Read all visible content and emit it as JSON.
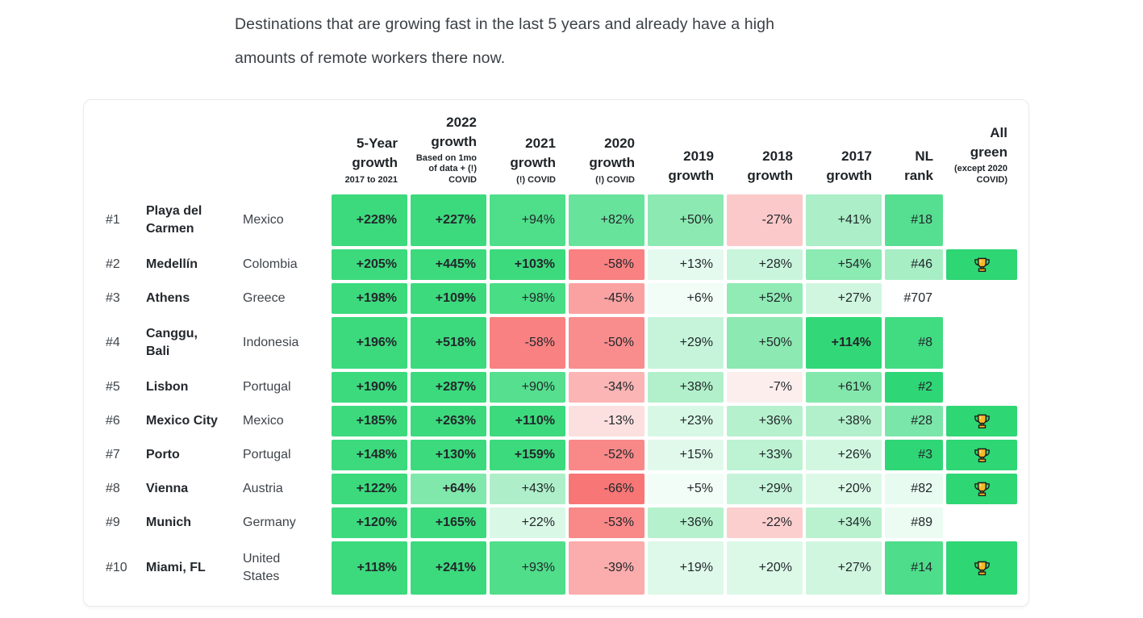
{
  "intro": {
    "text": "Destinations that are growing fast in the last 5 years and already have a high\namounts of remote workers there now."
  },
  "colors": {
    "strong_green": "#3cda7d",
    "trophy_cell_bg": "#2ed674",
    "card_border": "#e8eaec",
    "cell_text": "#22272b",
    "label_text": "#3f444a"
  },
  "icons": {
    "all_green_badge": "trophy-icon"
  },
  "table": {
    "columns": [
      {
        "title": "5-Year\ngrowth",
        "subtitle": "2017 to 2021"
      },
      {
        "title": "2022\ngrowth",
        "subtitle": "Based on 1mo\nof data + (!)\nCOVID"
      },
      {
        "title": "2021\ngrowth",
        "subtitle": "(!) COVID"
      },
      {
        "title": "2020\ngrowth",
        "subtitle": "(!) COVID"
      },
      {
        "title": "2019\ngrowth",
        "subtitle": ""
      },
      {
        "title": "2018\ngrowth",
        "subtitle": ""
      },
      {
        "title": "2017\ngrowth",
        "subtitle": ""
      },
      {
        "title": "NL\nrank",
        "subtitle": ""
      },
      {
        "title": "All\ngreen",
        "subtitle": "(except 2020\nCOVID)"
      }
    ],
    "rows": [
      {
        "rank": "#1",
        "city": "Playa del\nCarmen",
        "country": "Mexico",
        "h": 64,
        "trophy": false,
        "nl": {
          "t": "#18",
          "bg": "#56df90"
        },
        "values": [
          {
            "t": "+228%",
            "bg": "#3cda7d",
            "b": true
          },
          {
            "t": "+227%",
            "bg": "#3cda7d",
            "b": true
          },
          {
            "t": "+94%",
            "bg": "#4fde8a",
            "b": false
          },
          {
            "t": "+82%",
            "bg": "#68e39c",
            "b": false
          },
          {
            "t": "+50%",
            "bg": "#8ce9b2",
            "b": false
          },
          {
            "t": "-27%",
            "bg": "#fbc9c9",
            "b": false
          },
          {
            "t": "+41%",
            "bg": "#abeec7",
            "b": false
          }
        ]
      },
      {
        "rank": "#2",
        "city": "Medellín",
        "country": "Colombia",
        "h": 38,
        "trophy": true,
        "nl": {
          "t": "#46",
          "bg": "#a7eec5"
        },
        "values": [
          {
            "t": "+205%",
            "bg": "#3cda7d",
            "b": true
          },
          {
            "t": "+445%",
            "bg": "#3cda7d",
            "b": true
          },
          {
            "t": "+103%",
            "bg": "#3cda7d",
            "b": true
          },
          {
            "t": "-58%",
            "bg": "#f98181",
            "b": false
          },
          {
            "t": "+13%",
            "bg": "#e4faee",
            "b": false
          },
          {
            "t": "+28%",
            "bg": "#c9f5dc",
            "b": false
          },
          {
            "t": "+54%",
            "bg": "#8ceab3",
            "b": false
          }
        ]
      },
      {
        "rank": "#3",
        "city": "Athens",
        "country": "Greece",
        "h": 38,
        "trophy": false,
        "nl": {
          "t": "#707",
          "bg": ""
        },
        "values": [
          {
            "t": "+198%",
            "bg": "#3cda7d",
            "b": true
          },
          {
            "t": "+109%",
            "bg": "#3cda7d",
            "b": true
          },
          {
            "t": "+98%",
            "bg": "#49dd86",
            "b": false
          },
          {
            "t": "-45%",
            "bg": "#faa2a2",
            "b": false
          },
          {
            "t": "+6%",
            "bg": "#f1fdf6",
            "b": false
          },
          {
            "t": "+52%",
            "bg": "#90ebb5",
            "b": false
          },
          {
            "t": "+27%",
            "bg": "#d0f6e0",
            "b": false
          }
        ]
      },
      {
        "rank": "#4",
        "city": "Canggu,\nBali",
        "country": "Indonesia",
        "h": 64,
        "trophy": false,
        "nl": {
          "t": "#8",
          "bg": "#41db82"
        },
        "values": [
          {
            "t": "+196%",
            "bg": "#3cda7d",
            "b": true
          },
          {
            "t": "+518%",
            "bg": "#3cda7d",
            "b": true
          },
          {
            "t": "-58%",
            "bg": "#f98181",
            "b": false
          },
          {
            "t": "-50%",
            "bg": "#f98d8d",
            "b": false
          },
          {
            "t": "+29%",
            "bg": "#c6f4da",
            "b": false
          },
          {
            "t": "+50%",
            "bg": "#8ce9b2",
            "b": false
          },
          {
            "t": "+114%",
            "bg": "#32d877",
            "b": true
          }
        ]
      },
      {
        "rank": "#5",
        "city": "Lisbon",
        "country": "Portugal",
        "h": 38,
        "trophy": false,
        "nl": {
          "t": "#2",
          "bg": "#2fd675"
        },
        "values": [
          {
            "t": "+190%",
            "bg": "#3cda7d",
            "b": true
          },
          {
            "t": "+287%",
            "bg": "#3cda7d",
            "b": true
          },
          {
            "t": "+90%",
            "bg": "#55df8e",
            "b": false
          },
          {
            "t": "-34%",
            "bg": "#fbb5b5",
            "b": false
          },
          {
            "t": "+38%",
            "bg": "#b2f0cb",
            "b": false
          },
          {
            "t": "-7%",
            "bg": "#fdeeee",
            "b": false
          },
          {
            "t": "+61%",
            "bg": "#84e8ac",
            "b": false
          }
        ]
      },
      {
        "rank": "#6",
        "city": "Mexico City",
        "country": "Mexico",
        "h": 38,
        "trophy": true,
        "nl": {
          "t": "#28",
          "bg": "#7ae6a9"
        },
        "values": [
          {
            "t": "+185%",
            "bg": "#3cda7d",
            "b": true
          },
          {
            "t": "+263%",
            "bg": "#3cda7d",
            "b": true
          },
          {
            "t": "+110%",
            "bg": "#3cda7d",
            "b": true
          },
          {
            "t": "-13%",
            "bg": "#fce0e0",
            "b": false
          },
          {
            "t": "+23%",
            "bg": "#d7f8e5",
            "b": false
          },
          {
            "t": "+36%",
            "bg": "#b6f1cd",
            "b": false
          },
          {
            "t": "+38%",
            "bg": "#b2f0cb",
            "b": false
          }
        ]
      },
      {
        "rank": "#7",
        "city": "Porto",
        "country": "Portugal",
        "h": 38,
        "trophy": true,
        "nl": {
          "t": "#3",
          "bg": "#2fd675"
        },
        "values": [
          {
            "t": "+148%",
            "bg": "#3cda7d",
            "b": true
          },
          {
            "t": "+130%",
            "bg": "#3cda7d",
            "b": true
          },
          {
            "t": "+159%",
            "bg": "#3cda7d",
            "b": true
          },
          {
            "t": "-52%",
            "bg": "#f98989",
            "b": false
          },
          {
            "t": "+15%",
            "bg": "#e1f9eb",
            "b": false
          },
          {
            "t": "+33%",
            "bg": "#bdf3d3",
            "b": false
          },
          {
            "t": "+26%",
            "bg": "#d2f7e1",
            "b": false
          }
        ]
      },
      {
        "rank": "#8",
        "city": "Vienna",
        "country": "Austria",
        "h": 38,
        "trophy": true,
        "nl": {
          "t": "#82",
          "bg": "#e7fbf0"
        },
        "values": [
          {
            "t": "+122%",
            "bg": "#3cda7d",
            "b": true
          },
          {
            "t": "+64%",
            "bg": "#81e8ab",
            "b": true
          },
          {
            "t": "+43%",
            "bg": "#aeefc9",
            "b": false
          },
          {
            "t": "-66%",
            "bg": "#f87676",
            "b": false
          },
          {
            "t": "+5%",
            "bg": "#f2fdf7",
            "b": false
          },
          {
            "t": "+29%",
            "bg": "#c6f4da",
            "b": false
          },
          {
            "t": "+20%",
            "bg": "#dcf9e8",
            "b": false
          }
        ]
      },
      {
        "rank": "#9",
        "city": "Munich",
        "country": "Germany",
        "h": 38,
        "trophy": false,
        "nl": {
          "t": "#89",
          "bg": "#ecfcf3"
        },
        "values": [
          {
            "t": "+120%",
            "bg": "#3cda7d",
            "b": true
          },
          {
            "t": "+165%",
            "bg": "#3cda7d",
            "b": true
          },
          {
            "t": "+22%",
            "bg": "#d9f8e6",
            "b": false
          },
          {
            "t": "-53%",
            "bg": "#f98888",
            "b": false
          },
          {
            "t": "+36%",
            "bg": "#b6f1cd",
            "b": false
          },
          {
            "t": "-22%",
            "bg": "#fccfcf",
            "b": false
          },
          {
            "t": "+34%",
            "bg": "#baf2d0",
            "b": false
          }
        ]
      },
      {
        "rank": "#10",
        "city": "Miami, FL",
        "country": "United\nStates",
        "h": 66,
        "trophy": true,
        "nl": {
          "t": "#14",
          "bg": "#4edd8a"
        },
        "values": [
          {
            "t": "+118%",
            "bg": "#3cda7d",
            "b": true
          },
          {
            "t": "+241%",
            "bg": "#3cda7d",
            "b": true
          },
          {
            "t": "+93%",
            "bg": "#51de8b",
            "b": false
          },
          {
            "t": "-39%",
            "bg": "#fbacac",
            "b": false
          },
          {
            "t": "+19%",
            "bg": "#def9e9",
            "b": false
          },
          {
            "t": "+20%",
            "bg": "#dcf9e8",
            "b": false
          },
          {
            "t": "+27%",
            "bg": "#d0f6e0",
            "b": false
          }
        ]
      }
    ]
  },
  "chart_data": {
    "type": "table",
    "title": "Destinations that are growing fast in the last 5 years and already have a high amounts of remote workers there now.",
    "columns": [
      "5-Year growth (2017 to 2021)",
      "2022 growth (Based on 1mo of data + (!) COVID)",
      "2021 growth ((!) COVID)",
      "2020 growth ((!) COVID)",
      "2019 growth",
      "2018 growth",
      "2017 growth",
      "NL rank",
      "All green (except 2020 COVID)"
    ],
    "rows": [
      {
        "rank": 1,
        "city": "Playa del Carmen",
        "country": "Mexico",
        "growth_pct": [
          228,
          227,
          94,
          82,
          50,
          -27,
          41
        ],
        "nl_rank": 18,
        "all_green": false
      },
      {
        "rank": 2,
        "city": "Medellín",
        "country": "Colombia",
        "growth_pct": [
          205,
          445,
          103,
          -58,
          13,
          28,
          54
        ],
        "nl_rank": 46,
        "all_green": true
      },
      {
        "rank": 3,
        "city": "Athens",
        "country": "Greece",
        "growth_pct": [
          198,
          109,
          98,
          -45,
          6,
          52,
          27
        ],
        "nl_rank": 707,
        "all_green": false
      },
      {
        "rank": 4,
        "city": "Canggu, Bali",
        "country": "Indonesia",
        "growth_pct": [
          196,
          518,
          -58,
          -50,
          29,
          50,
          114
        ],
        "nl_rank": 8,
        "all_green": false
      },
      {
        "rank": 5,
        "city": "Lisbon",
        "country": "Portugal",
        "growth_pct": [
          190,
          287,
          90,
          -34,
          38,
          -7,
          61
        ],
        "nl_rank": 2,
        "all_green": false
      },
      {
        "rank": 6,
        "city": "Mexico City",
        "country": "Mexico",
        "growth_pct": [
          185,
          263,
          110,
          -13,
          23,
          36,
          38
        ],
        "nl_rank": 28,
        "all_green": true
      },
      {
        "rank": 7,
        "city": "Porto",
        "country": "Portugal",
        "growth_pct": [
          148,
          130,
          159,
          -52,
          15,
          33,
          26
        ],
        "nl_rank": 3,
        "all_green": true
      },
      {
        "rank": 8,
        "city": "Vienna",
        "country": "Austria",
        "growth_pct": [
          122,
          64,
          43,
          -66,
          5,
          29,
          20
        ],
        "nl_rank": 82,
        "all_green": true
      },
      {
        "rank": 9,
        "city": "Munich",
        "country": "Germany",
        "growth_pct": [
          120,
          165,
          22,
          -53,
          36,
          -22,
          34
        ],
        "nl_rank": 89,
        "all_green": false
      },
      {
        "rank": 10,
        "city": "Miami, FL",
        "country": "United States",
        "growth_pct": [
          118,
          241,
          93,
          -39,
          19,
          20,
          27
        ],
        "nl_rank": 14,
        "all_green": true
      }
    ]
  }
}
